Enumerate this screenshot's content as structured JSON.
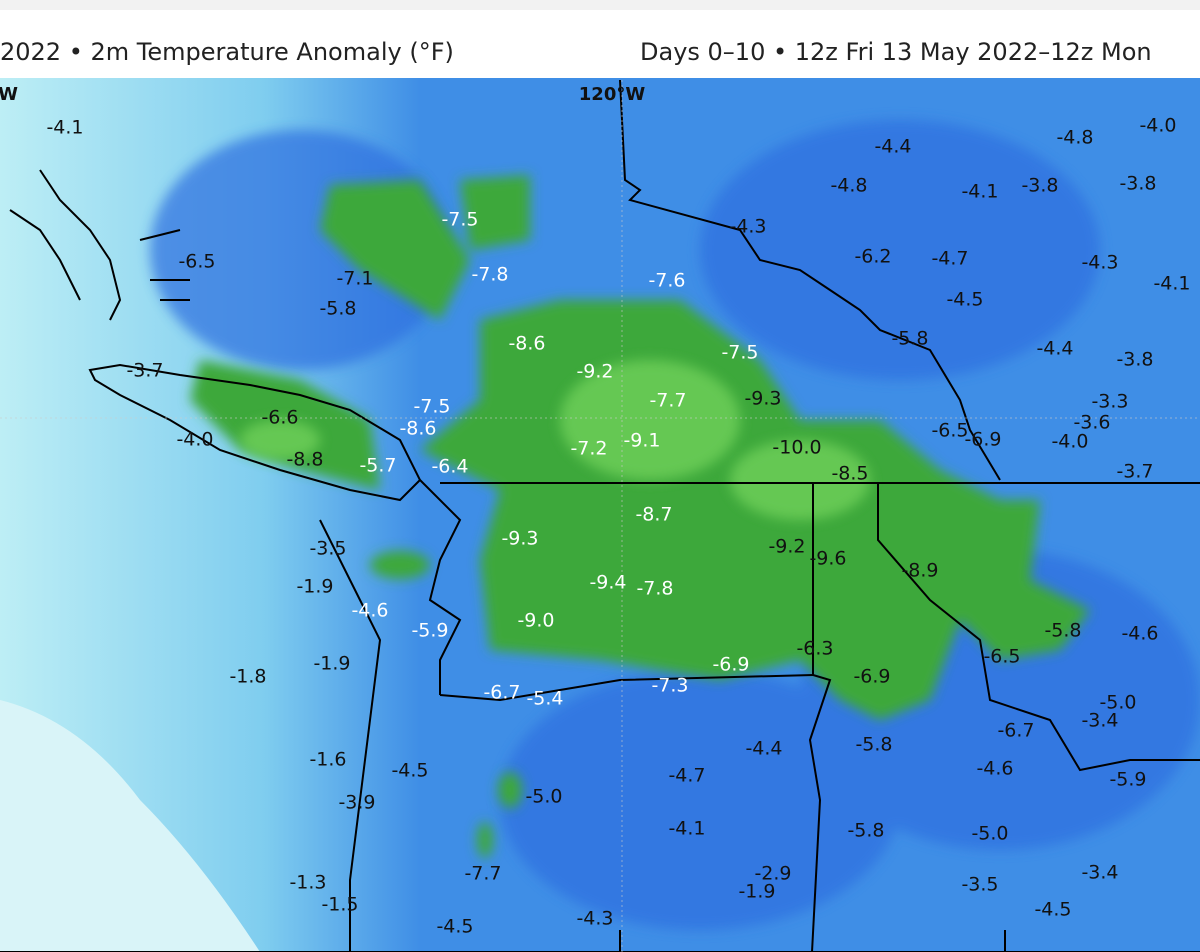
{
  "header": {
    "left": "2022 • 2m Temperature Anomaly (°F)",
    "right": "Days 0–10 • 12z Fri 13 May 2022–12z Mon"
  },
  "map": {
    "longitude_labels": [
      "W",
      "120°W"
    ],
    "labels": [
      "-4.1",
      "-6.5",
      "-7.1",
      "-5.8",
      "-7.5",
      "-7.8",
      "-7.6",
      "-4.3",
      "-4.4",
      "-4.8",
      "-4.1",
      "-3.8",
      "-4.8",
      "-4.0",
      "-3.8",
      "-6.2",
      "-4.7",
      "-4.3",
      "-4.1",
      "-4.5",
      "-5.8",
      "-4.4",
      "-3.8",
      "-8.6",
      "-9.2",
      "-7.5",
      "-7.7",
      "-9.3",
      "-3.7",
      "-6.6",
      "-7.5",
      "-8.6",
      "-4.0",
      "-8.8",
      "-5.7",
      "-6.4",
      "-7.2",
      "-9.1",
      "-10.0",
      "-6.5",
      "-6.9",
      "-3.3",
      "-3.6",
      "-4.0",
      "-8.5",
      "-3.7",
      "-8.7",
      "-9.3",
      "-9.2",
      "-9.6",
      "-8.9",
      "-3.5",
      "-1.9",
      "-4.6",
      "-9.4",
      "-7.8",
      "-5.9",
      "-9.0",
      "-5.8",
      "-4.6",
      "-6.5",
      "-6.3",
      "-6.9",
      "-6.9",
      "-1.8",
      "-1.9",
      "-6.7",
      "-5.4",
      "-7.3",
      "-5.0",
      "-3.4",
      "-6.7",
      "-5.8",
      "-4.4",
      "-1.6",
      "-4.5",
      "-4.7",
      "-4.6",
      "-5.9",
      "-3.9",
      "-5.0",
      "-4.1",
      "-5.8",
      "-5.0",
      "-7.7",
      "-2.9",
      "-1.9",
      "-3.5",
      "-3.4",
      "-1.3",
      "-1.5",
      "-4.5",
      "-4.5",
      "-4.3"
    ]
  }
}
